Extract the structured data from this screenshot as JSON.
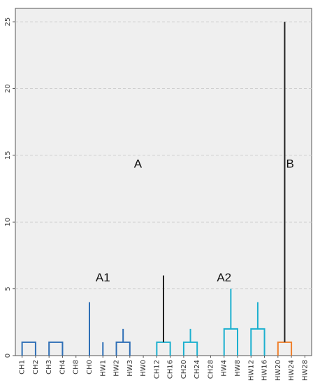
{
  "chart_data": {
    "type": "dendrogram",
    "ylim": [
      0,
      26
    ],
    "yticks": [
      0,
      5,
      10,
      15,
      20,
      25
    ],
    "grid": true,
    "leaves": [
      "CH1",
      "CH2",
      "CH3",
      "CH4",
      "CH8",
      "CH0",
      "HW1",
      "HW2",
      "HW3",
      "HW0",
      "CH12",
      "CH16",
      "CH20",
      "CH24",
      "CH28",
      "HW4",
      "HW8",
      "HW12",
      "HW16",
      "HW20",
      "HW24",
      "HW28"
    ],
    "colors": {
      "A1": "#2e6fb6",
      "A2": "#1cb0cf",
      "B": "#f07f2a",
      "root": "#222222",
      "grid": "#cfcfcf",
      "background": "#efefef"
    },
    "cluster_labels": [
      {
        "text": "A",
        "leaf_pos": 8.6,
        "y": 14.3
      },
      {
        "text": "B",
        "leaf_pos": 19.9,
        "y": 14.3
      },
      {
        "text": "A1",
        "leaf_pos": 6.0,
        "y": 5.8
      },
      {
        "text": "A2",
        "leaf_pos": 15.0,
        "y": 5.8
      }
    ],
    "links": [
      {
        "a": 0,
        "b": 1,
        "h": 1,
        "g": "A1"
      },
      {
        "a": 2,
        "b": 3,
        "h": 1,
        "g": "A1"
      },
      {
        "a": 24,
        "b": 4,
        "h": 1,
        "g": "A1"
      },
      {
        "a": 23,
        "b": 25,
        "h": 1,
        "g": "A1"
      },
      {
        "a": 7,
        "b": 8,
        "h": 1,
        "g": "A1"
      },
      {
        "a": 6,
        "b": 27,
        "h": 1,
        "g": "A1"
      },
      {
        "a": 28,
        "b": 9,
        "h": 2,
        "g": "A1"
      },
      {
        "a": 26,
        "b": 29,
        "h": 2,
        "g": "A1"
      },
      {
        "a": 5,
        "b": 30,
        "h": 4,
        "g": "A1"
      },
      {
        "a": 10,
        "b": 11,
        "h": 1,
        "g": "A2"
      },
      {
        "a": 12,
        "b": 13,
        "h": 1,
        "g": "A2"
      },
      {
        "a": 32,
        "b": 33,
        "h": 2,
        "g": "A2"
      },
      {
        "a": 34,
        "b": 14,
        "h": 3,
        "g": "A2"
      },
      {
        "a": 15,
        "b": 16,
        "h": 2,
        "g": "A2"
      },
      {
        "a": 17,
        "b": 18,
        "h": 2,
        "g": "A2"
      },
      {
        "a": 36,
        "b": 37,
        "h": 4,
        "g": "A2"
      },
      {
        "a": 35,
        "b": 38,
        "h": 5,
        "g": "A2"
      },
      {
        "a": 31,
        "b": 39,
        "h": 6,
        "g": "root"
      },
      {
        "a": 19,
        "b": 20,
        "h": 1,
        "g": "B"
      },
      {
        "a": 41,
        "b": 21,
        "h": 5,
        "g": "B"
      },
      {
        "a": 40,
        "b": 42,
        "h": 25,
        "g": "root"
      }
    ]
  }
}
